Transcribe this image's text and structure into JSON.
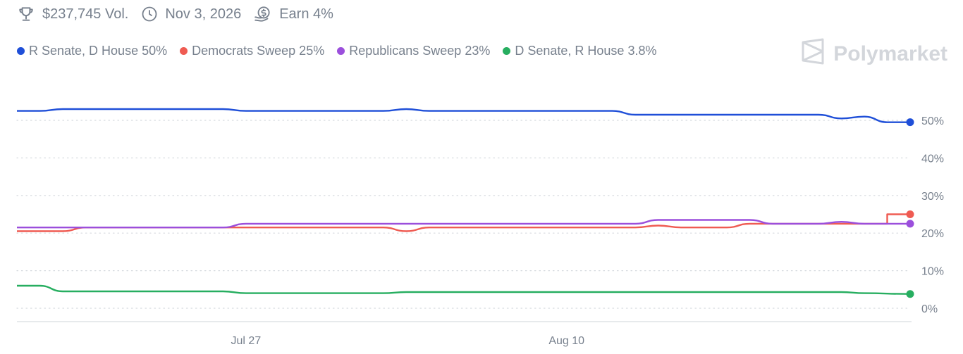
{
  "header": {
    "volume": "$237,745 Vol.",
    "end_date": "Nov 3, 2026",
    "earn": "Earn 4%",
    "icons": [
      "trophy-icon",
      "clock-icon",
      "earn-coin-icon"
    ]
  },
  "brand": {
    "name": "Polymarket",
    "icon": "polymarket-logo-icon"
  },
  "legend": [
    {
      "label": "R Senate, D House 50%",
      "color": "#1f4fd8"
    },
    {
      "label": "Democrats Sweep 25%",
      "color": "#ef5b52"
    },
    {
      "label": "Republicans Sweep 23%",
      "color": "#9b4fdc"
    },
    {
      "label": "D Senate, R House 3.8%",
      "color": "#27ae60"
    }
  ],
  "chart_data": {
    "type": "line",
    "x_axis": {
      "range": [
        "Jul 17",
        "Aug 25"
      ],
      "tick_labels": [
        "Jul 27",
        "Aug 10"
      ]
    },
    "y_axis": {
      "range": [
        0,
        50
      ],
      "unit": "%",
      "tick_labels": [
        "50%",
        "40%",
        "30%",
        "20%",
        "10%",
        "0%"
      ],
      "position": "right"
    },
    "grid": "horizontal dotted",
    "series": [
      {
        "name": "R Senate, D House",
        "color": "#1f4fd8",
        "points": [
          [
            "Jul 17",
            52.5
          ],
          [
            "Jul 18",
            52.5
          ],
          [
            "Jul 19",
            53
          ],
          [
            "Jul 26",
            53
          ],
          [
            "Jul 27",
            52.5
          ],
          [
            "Aug 2",
            52.5
          ],
          [
            "Aug 3",
            53
          ],
          [
            "Aug 4",
            52.5
          ],
          [
            "Aug 12",
            52.5
          ],
          [
            "Aug 13",
            51.5
          ],
          [
            "Aug 21",
            51.5
          ],
          [
            "Aug 22",
            50.5
          ],
          [
            "Aug 23",
            51
          ],
          [
            "Aug 24",
            49.5
          ],
          [
            "Aug 25",
            49.5
          ]
        ]
      },
      {
        "name": "Democrats Sweep",
        "color": "#ef5b52",
        "points": [
          [
            "Jul 17",
            20.5
          ],
          [
            "Jul 19",
            20.5
          ],
          [
            "Jul 20",
            21.5
          ],
          [
            "Aug 2",
            21.5
          ],
          [
            "Aug 3",
            20.5
          ],
          [
            "Aug 4",
            21.5
          ],
          [
            "Aug 13",
            21.5
          ],
          [
            "Aug 14",
            22
          ],
          [
            "Aug 15",
            21.5
          ],
          [
            "Aug 17",
            21.5
          ],
          [
            "Aug 18",
            22.5
          ],
          [
            "Aug 24",
            22.5
          ],
          [
            "Aug 24",
            25
          ],
          [
            "Aug 25",
            25
          ]
        ]
      },
      {
        "name": "Republicans Sweep",
        "color": "#9b4fdc",
        "points": [
          [
            "Jul 17",
            21.5
          ],
          [
            "Jul 26",
            21.5
          ],
          [
            "Jul 27",
            22.5
          ],
          [
            "Aug 13",
            22.5
          ],
          [
            "Aug 14",
            23.5
          ],
          [
            "Aug 18",
            23.5
          ],
          [
            "Aug 19",
            22.5
          ],
          [
            "Aug 21",
            22.5
          ],
          [
            "Aug 22",
            23
          ],
          [
            "Aug 23",
            22.5
          ],
          [
            "Aug 25",
            22.5
          ]
        ]
      },
      {
        "name": "D Senate, R House",
        "color": "#27ae60",
        "points": [
          [
            "Jul 17",
            6
          ],
          [
            "Jul 18",
            6
          ],
          [
            "Jul 19",
            4.5
          ],
          [
            "Jul 26",
            4.5
          ],
          [
            "Jul 27",
            4
          ],
          [
            "Aug 2",
            4
          ],
          [
            "Aug 3",
            4.3
          ],
          [
            "Aug 22",
            4.3
          ],
          [
            "Aug 23",
            4
          ],
          [
            "Aug 25",
            3.8
          ]
        ]
      }
    ]
  }
}
